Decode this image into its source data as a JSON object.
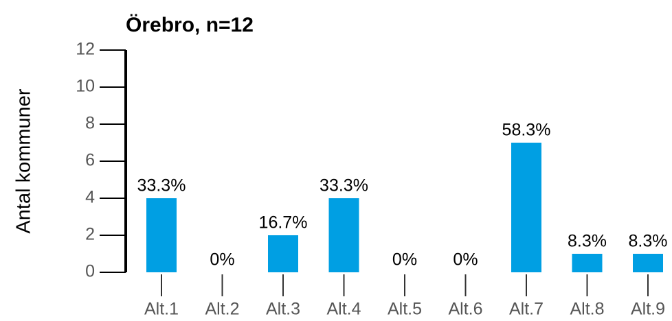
{
  "chart_data": {
    "type": "bar",
    "title": "Örebro, n=12",
    "ylabel": "Antal kommuner",
    "categories": [
      "Alt.1",
      "Alt.2",
      "Alt.3",
      "Alt.4",
      "Alt.5",
      "Alt.6",
      "Alt.7",
      "Alt.8",
      "Alt.9"
    ],
    "values": [
      4,
      0,
      2,
      4,
      0,
      0,
      7,
      1,
      1
    ],
    "value_labels": [
      "33.3%",
      "0%",
      "16.7%",
      "33.3%",
      "0%",
      "0%",
      "58.3%",
      "8.3%",
      "8.3%"
    ],
    "color": "#009fe3",
    "ylim": [
      0,
      12
    ],
    "yticks": [
      0,
      2,
      4,
      6,
      8,
      10,
      12
    ],
    "grid": false
  }
}
